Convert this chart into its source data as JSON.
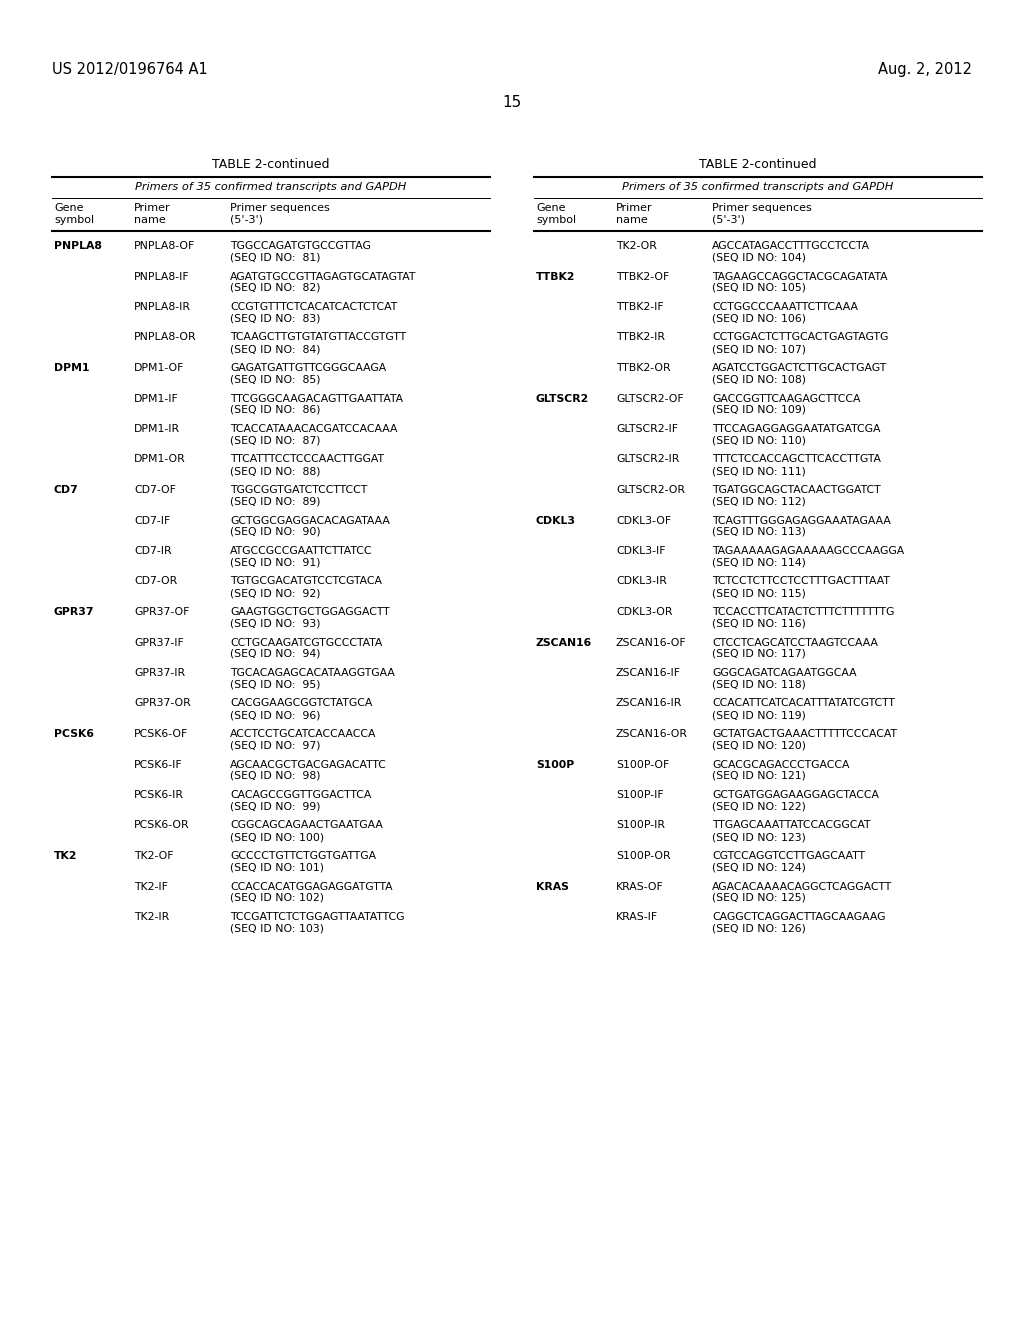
{
  "header_left": "US 2012/0196764 A1",
  "header_right": "Aug. 2, 2012",
  "page_number": "15",
  "table_title": "TABLE 2-continued",
  "table_subtitle": "Primers of 35 confirmed transcripts and GAPDH",
  "left_table": [
    [
      "PNPLA8",
      "PNPLA8-OF",
      "TGGCCAGATGTGCCGTTAG",
      "SEQ ID NO:  81"
    ],
    [
      "",
      "PNPLA8-IF",
      "AGATGTGCCGTTAGAGTGCATAGTAT",
      "SEQ ID NO:  82"
    ],
    [
      "",
      "PNPLA8-IR",
      "CCGTGTTTCTCACATCACTCTCAT",
      "SEQ ID NO:  83"
    ],
    [
      "",
      "PNPLA8-OR",
      "TCAAGCTTGTGTATGTTACCGTGTT",
      "SEQ ID NO:  84"
    ],
    [
      "DPM1",
      "DPM1-OF",
      "GAGATGATTGTTCGGGCAAGA",
      "SEQ ID NO:  85"
    ],
    [
      "",
      "DPM1-IF",
      "TTCGGGCAAGACAGTTGAATTATA",
      "SEQ ID NO:  86"
    ],
    [
      "",
      "DPM1-IR",
      "TCACCATAAACACGATCCACAAA",
      "SEQ ID NO:  87"
    ],
    [
      "",
      "DPM1-OR",
      "TTCATTTCCTCCCAACTTGGAT",
      "SEQ ID NO:  88"
    ],
    [
      "CD7",
      "CD7-OF",
      "TGGCGGTGATCTCCTTCCT",
      "SEQ ID NO:  89"
    ],
    [
      "",
      "CD7-IF",
      "GCTGGCGAGGACACAGATAAA",
      "SEQ ID NO:  90"
    ],
    [
      "",
      "CD7-IR",
      "ATGCCGCCGAATTCTTATCC",
      "SEQ ID NO:  91"
    ],
    [
      "",
      "CD7-OR",
      "TGTGCGACATGTCCTCGTACA",
      "SEQ ID NO:  92"
    ],
    [
      "GPR37",
      "GPR37-OF",
      "GAAGTGGCTGCTGGAGGACTT",
      "SEQ ID NO:  93"
    ],
    [
      "",
      "GPR37-IF",
      "CCTGCAAGATCGTGCCCTATA",
      "SEQ ID NO:  94"
    ],
    [
      "",
      "GPR37-IR",
      "TGCACAGAGCACATAAGGTGAA",
      "SEQ ID NO:  95"
    ],
    [
      "",
      "GPR37-OR",
      "CACGGAAGCGGTCTATGCA",
      "SEQ ID NO:  96"
    ],
    [
      "PCSK6",
      "PCSK6-OF",
      "ACCTCCTGCATCACCAACCA",
      "SEQ ID NO:  97"
    ],
    [
      "",
      "PCSK6-IF",
      "AGCAACGCTGACGAGACATTC",
      "SEQ ID NO:  98"
    ],
    [
      "",
      "PCSK6-IR",
      "CACAGCCGGTTGGACTTCA",
      "SEQ ID NO:  99"
    ],
    [
      "",
      "PCSK6-OR",
      "CGGCAGCAGAACTGAATGAA",
      "SEQ ID NO: 100"
    ],
    [
      "TK2",
      "TK2-OF",
      "GCCCCTGTTCTGGTGATTGA",
      "SEQ ID NO: 101"
    ],
    [
      "",
      "TK2-IF",
      "CCACCACATGGAGAGGATGTTA",
      "SEQ ID NO: 102"
    ],
    [
      "",
      "TK2-IR",
      "TCCGATTCTCTGGAGTTAATATTCG",
      "SEQ ID NO: 103"
    ]
  ],
  "right_table": [
    [
      "",
      "TK2-OR",
      "AGCCATAGACCTTTGCCTCCTA",
      "SEQ ID NO: 104"
    ],
    [
      "TTBK2",
      "TTBK2-OF",
      "TAGAAGCCAGGCTACGCAGATATA",
      "SEQ ID NO: 105"
    ],
    [
      "",
      "TTBK2-IF",
      "CCTGGCCCAAATTCTTCAAA",
      "SEQ ID NO: 106"
    ],
    [
      "",
      "TTBK2-IR",
      "CCTGGACTCTTGCACTGAGTAGTG",
      "SEQ ID NO: 107"
    ],
    [
      "",
      "TTBK2-OR",
      "AGATCCTGGACTCTTGCACTGAGT",
      "SEQ ID NO: 108"
    ],
    [
      "GLTSCR2",
      "GLTSCR2-OF",
      "GACCGGTTCAAGAGCTTCCA",
      "SEQ ID NO: 109"
    ],
    [
      "",
      "GLTSCR2-IF",
      "TTCCAGAGGAGGAATATGATCGA",
      "SEQ ID NO: 110"
    ],
    [
      "",
      "GLTSCR2-IR",
      "TTTCTCCACCAGCTTCACCTTGTA",
      "SEQ ID NO: 111"
    ],
    [
      "",
      "GLTSCR2-OR",
      "TGATGGCAGCTACAACTGGATCT",
      "SEQ ID NO: 112"
    ],
    [
      "CDKL3",
      "CDKL3-OF",
      "TCAGTTTGGGAGAGGAAATAGAAA",
      "SEQ ID NO: 113"
    ],
    [
      "",
      "CDKL3-IF",
      "TAGAAAAAGAGAAAAAGCCCAAGGA",
      "SEQ ID NO: 114"
    ],
    [
      "",
      "CDKL3-IR",
      "TCTCCTCTTCCTCCTTTGACTTTAAT",
      "SEQ ID NO: 115"
    ],
    [
      "",
      "CDKL3-OR",
      "TCCACCTTCATACTCTTTCTTTTTTTG",
      "SEQ ID NO: 116"
    ],
    [
      "ZSCAN16",
      "ZSCAN16-OF",
      "CTCCTCAGCATCCTAAGTCCAAA",
      "SEQ ID NO: 117"
    ],
    [
      "",
      "ZSCAN16-IF",
      "GGGCAGATCAGAATGGCAA",
      "SEQ ID NO: 118"
    ],
    [
      "",
      "ZSCAN16-IR",
      "CCACATTCATCACATTTATATCGTCTT",
      "SEQ ID NO: 119"
    ],
    [
      "",
      "ZSCAN16-OR",
      "GCTATGACTGAAACTTTTTCCCACAT",
      "SEQ ID NO: 120"
    ],
    [
      "S100P",
      "S100P-OF",
      "GCACGCAGACCCTGACCA",
      "SEQ ID NO: 121"
    ],
    [
      "",
      "S100P-IF",
      "GCTGATGGAGAAGGAGCTACCA",
      "SEQ ID NO: 122"
    ],
    [
      "",
      "S100P-IR",
      "TTGAGCAAATTATCCACGGCAT",
      "SEQ ID NO: 123"
    ],
    [
      "",
      "S100P-OR",
      "CGTCCAGGTCCTTGAGCAATT",
      "SEQ ID NO: 124"
    ],
    [
      "KRAS",
      "KRAS-OF",
      "AGACACAAAACAGGCTCAGGACTT",
      "SEQ ID NO: 125"
    ],
    [
      "",
      "KRAS-IF",
      "CAGGCTCAGGACTTAGCAAGAAG",
      "SEQ ID NO: 126"
    ]
  ],
  "bg_color": "#ffffff",
  "text_color": "#000000"
}
